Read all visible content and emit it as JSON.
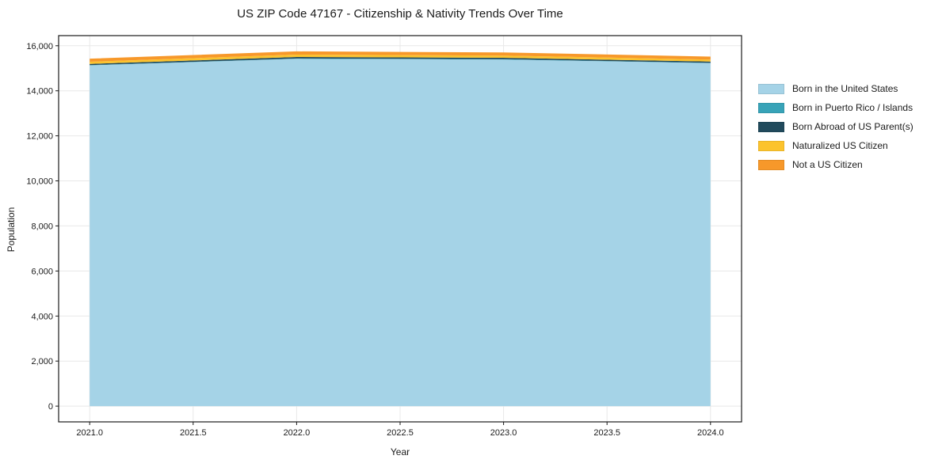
{
  "chart_data": {
    "type": "area",
    "stacked": true,
    "title": "US ZIP Code 47167 - Citizenship & Nativity Trends Over Time",
    "xlabel": "Year",
    "ylabel": "Population",
    "x": [
      2021,
      2022,
      2023,
      2024
    ],
    "series": [
      {
        "name": "Born in the United States",
        "color": "#a5d3e7",
        "values": [
          15130,
          15420,
          15390,
          15230
        ]
      },
      {
        "name": "Born in Puerto Rico / Islands",
        "color": "#38a3b8",
        "values": [
          12,
          15,
          15,
          12
        ]
      },
      {
        "name": "Born Abroad of US Parent(s)",
        "color": "#214a5c",
        "values": [
          55,
          65,
          60,
          55
        ]
      },
      {
        "name": "Naturalized US Citizen",
        "color": "#fcc32d",
        "values": [
          95,
          105,
          100,
          90
        ]
      },
      {
        "name": "Not a US Citizen",
        "color": "#f7982a",
        "values": [
          135,
          145,
          140,
          130
        ]
      }
    ],
    "totals": [
      15427,
      15750,
      15705,
      15517
    ],
    "xlim": [
      2020.85,
      2024.15
    ],
    "ylim": [
      -700,
      16450
    ],
    "xticks": [
      {
        "v": 2021.0,
        "label": "2021.0"
      },
      {
        "v": 2021.5,
        "label": "2021.5"
      },
      {
        "v": 2022.0,
        "label": "2022.0"
      },
      {
        "v": 2022.5,
        "label": "2022.5"
      },
      {
        "v": 2023.0,
        "label": "2023.0"
      },
      {
        "v": 2023.5,
        "label": "2023.5"
      },
      {
        "v": 2024.0,
        "label": "2024.0"
      }
    ],
    "yticks": [
      {
        "v": 0,
        "label": "0"
      },
      {
        "v": 2000,
        "label": "2,000"
      },
      {
        "v": 4000,
        "label": "4,000"
      },
      {
        "v": 6000,
        "label": "6,000"
      },
      {
        "v": 8000,
        "label": "8,000"
      },
      {
        "v": 10000,
        "label": "10,000"
      },
      {
        "v": 12000,
        "label": "12,000"
      },
      {
        "v": 14000,
        "label": "14,000"
      },
      {
        "v": 16000,
        "label": "16,000"
      }
    ],
    "grid": true,
    "legend_position": "right",
    "axis_color": "#1a1a1a",
    "grid_color": "#e8e8e8",
    "tick_label_color": "#1a1a1a",
    "background": "#ffffff"
  }
}
